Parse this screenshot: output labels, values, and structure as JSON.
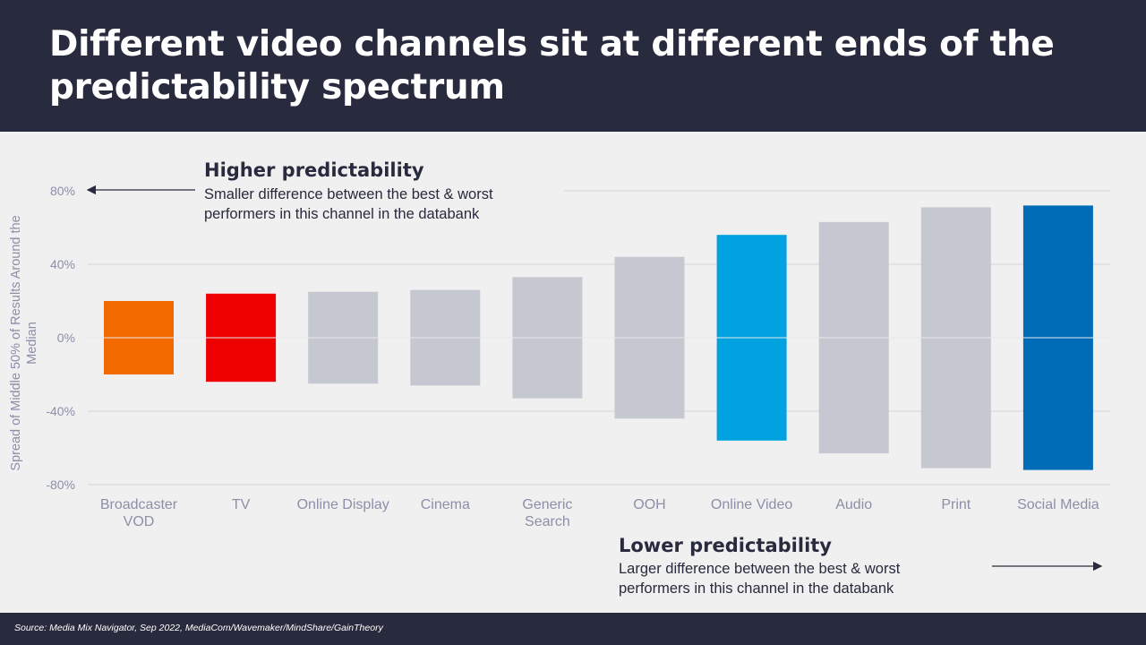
{
  "title": "Different video channels sit at different ends of the predictability spectrum",
  "source": "Source: Media Mix Navigator, Sep 2022, MediaCom/Wavemaker/MindShare/GainTheory",
  "annotations": {
    "higher": {
      "heading": "Higher predictability",
      "body": "Smaller difference between the best & worst\nperformers in this channel in the databank"
    },
    "lower": {
      "heading": "Lower predictability",
      "body": "Larger difference between the best & worst\nperformers in this channel in the databank"
    }
  },
  "colors": {
    "header_bg": "#282a3d",
    "background": "#f0f0f0",
    "default_bar": "#c5c8d0",
    "orange": "#f26a00",
    "red": "#ee0000",
    "light_blue": "#00a2e0",
    "dark_blue": "#006bb6"
  },
  "chart_data": {
    "type": "bar",
    "ylabel": "Spread of Middle 50% of Results Around the Median",
    "ylim": [
      -80,
      80
    ],
    "yticks": [
      80,
      40,
      0,
      -40,
      -80
    ],
    "ytick_labels": [
      "80%",
      "40%",
      "0%",
      "-40%",
      "-80%"
    ],
    "grid": true,
    "categories": [
      [
        "Broadcaster",
        "VOD"
      ],
      [
        "TV"
      ],
      [
        "Online Display"
      ],
      [
        "Cinema"
      ],
      [
        "Generic",
        "Search"
      ],
      [
        "OOH"
      ],
      [
        "Online Video"
      ],
      [
        "Audio"
      ],
      [
        "Print"
      ],
      [
        "Social Media"
      ]
    ],
    "upper": [
      20,
      24,
      25,
      26,
      33,
      44,
      56,
      63,
      71,
      72
    ],
    "lower": [
      -20,
      -24,
      -25,
      -26,
      -33,
      -44,
      -56,
      -63,
      -71,
      -72
    ],
    "bar_colors": [
      "#f26a00",
      "#ee0000",
      "#c5c8d0",
      "#c5c8d0",
      "#c5c8d0",
      "#c5c8d0",
      "#00a2e0",
      "#c5c8d0",
      "#c5c8d0",
      "#006bb6"
    ]
  }
}
